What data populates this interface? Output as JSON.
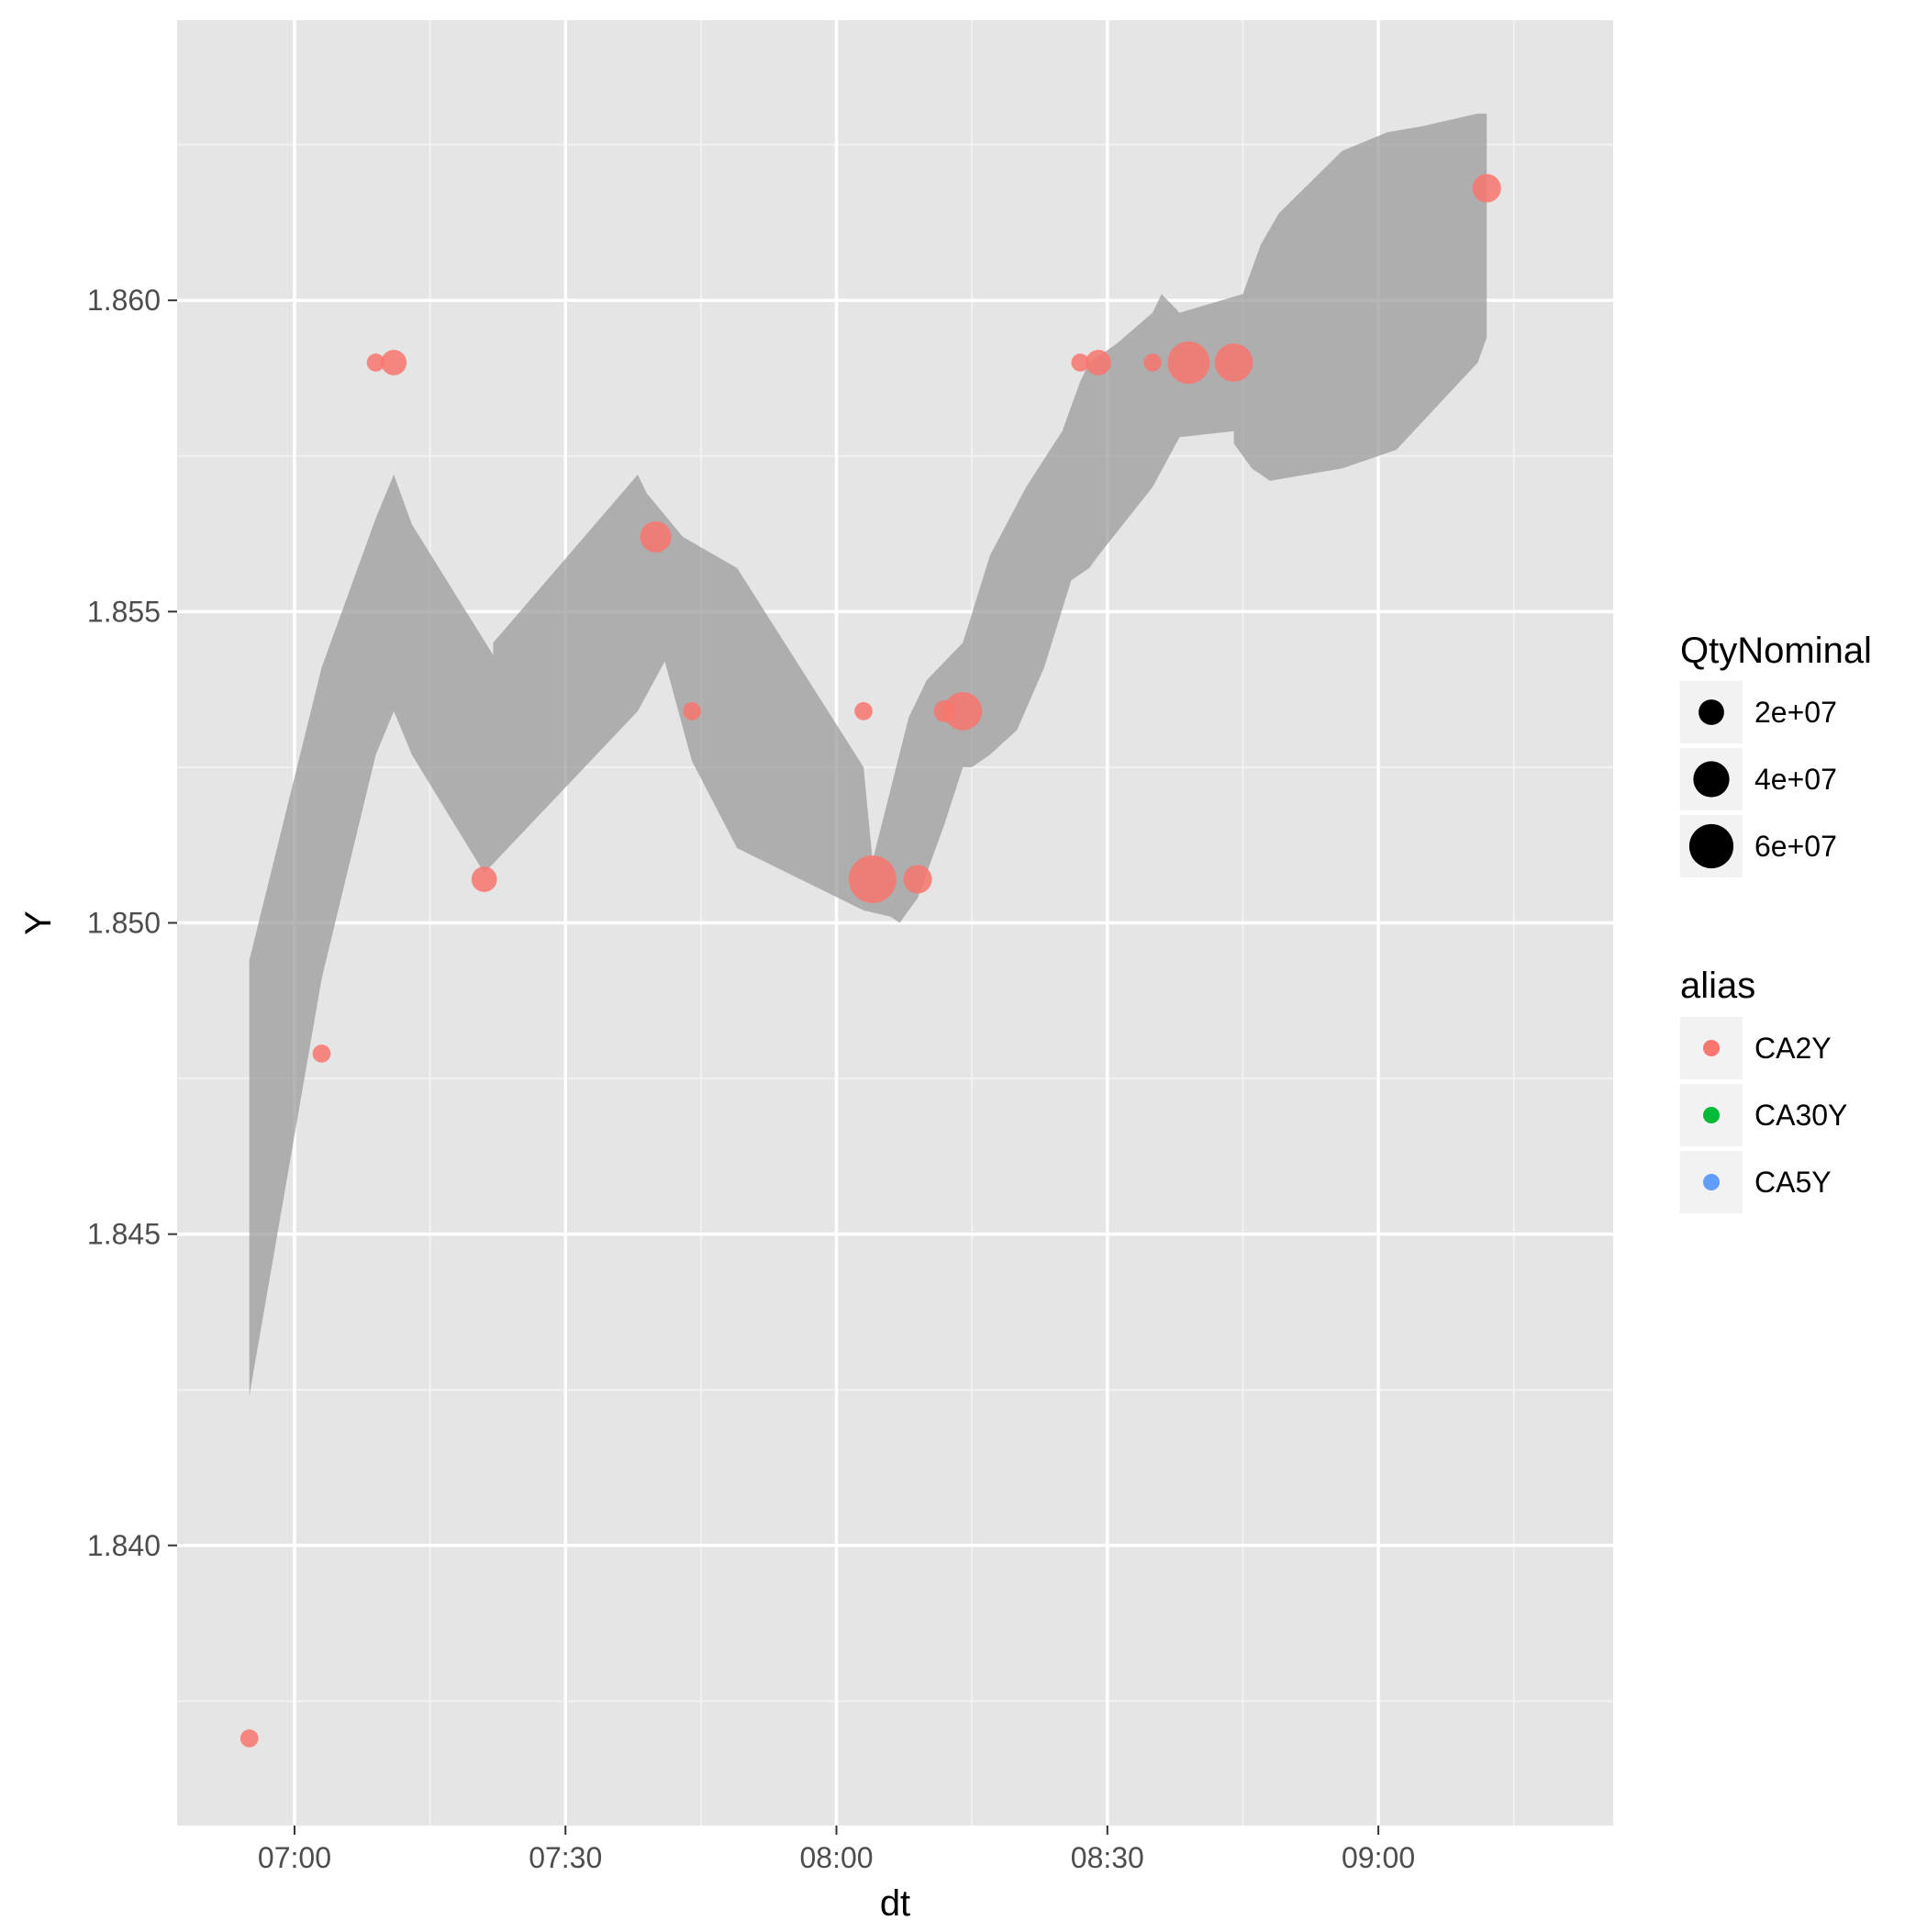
{
  "chart_data": {
    "type": "scatter",
    "xlabel": "dt",
    "ylabel": "Y",
    "grid": true,
    "legend_position": "right",
    "x_axis": {
      "type": "time",
      "range": [
        "06:47",
        "09:26"
      ],
      "ticks": [
        "07:00",
        "07:30",
        "08:00",
        "08:30",
        "09:00"
      ]
    },
    "y_axis": {
      "range": [
        1.8355,
        1.8645
      ],
      "ticks": [
        "1.840",
        "1.845",
        "1.850",
        "1.855",
        "1.860"
      ]
    },
    "band": {
      "color": "#999999",
      "upper": [
        [
          "06:55",
          1.8494
        ],
        [
          "07:03",
          1.8541
        ],
        [
          "07:09",
          1.8565
        ],
        [
          "07:11",
          1.8572
        ],
        [
          "07:13",
          1.8564
        ],
        [
          "07:22",
          1.8543
        ],
        [
          "07:22",
          1.8545
        ],
        [
          "07:38",
          1.8572
        ],
        [
          "07:39",
          1.8569
        ],
        [
          "07:43",
          1.8562
        ],
        [
          "07:49",
          1.8557
        ],
        [
          "08:03",
          1.8525
        ],
        [
          "08:04",
          1.851
        ],
        [
          "08:08",
          1.8533
        ],
        [
          "08:10",
          1.8539
        ],
        [
          "08:14",
          1.8545
        ],
        [
          "08:17",
          1.8559
        ],
        [
          "08:21",
          1.857
        ],
        [
          "08:25",
          1.8579
        ],
        [
          "08:27",
          1.8587
        ],
        [
          "08:28",
          1.859
        ],
        [
          "08:31",
          1.8593
        ],
        [
          "08:35",
          1.8598
        ],
        [
          "08:36",
          1.8601
        ],
        [
          "08:38",
          1.8598
        ],
        [
          "08:45",
          1.8601
        ],
        [
          "08:47",
          1.8609
        ],
        [
          "08:49",
          1.8614
        ],
        [
          "08:56",
          1.8624
        ],
        [
          "09:01",
          1.8627
        ],
        [
          "09:05",
          1.8628
        ],
        [
          "09:11",
          1.863
        ],
        [
          "09:12",
          1.863
        ]
      ],
      "lower": [
        [
          "09:12",
          1.8594
        ],
        [
          "09:11",
          1.859
        ],
        [
          "09:02",
          1.8576
        ],
        [
          "08:56",
          1.8573
        ],
        [
          "08:48",
          1.8571
        ],
        [
          "08:46",
          1.8573
        ],
        [
          "08:44",
          1.8577
        ],
        [
          "08:44",
          1.8579
        ],
        [
          "08:38",
          1.8578
        ],
        [
          "08:35",
          1.857
        ],
        [
          "08:29",
          1.8559
        ],
        [
          "08:28",
          1.8557
        ],
        [
          "08:26",
          1.8555
        ],
        [
          "08:23",
          1.8541
        ],
        [
          "08:20",
          1.8531
        ],
        [
          "08:17",
          1.8527
        ],
        [
          "08:15",
          1.8525
        ],
        [
          "08:14",
          1.8525
        ],
        [
          "08:12",
          1.8516
        ],
        [
          "08:09",
          1.8504
        ],
        [
          "08:07",
          1.85
        ],
        [
          "08:06",
          1.8501
        ],
        [
          "08:03",
          1.8502
        ],
        [
          "07:49",
          1.8512
        ],
        [
          "07:44",
          1.8526
        ],
        [
          "07:41",
          1.8542
        ],
        [
          "07:38",
          1.8534
        ],
        [
          "07:21",
          1.8508
        ],
        [
          "07:13",
          1.8527
        ],
        [
          "07:11",
          1.8534
        ],
        [
          "07:09",
          1.8527
        ],
        [
          "07:03",
          1.8491
        ],
        [
          "06:55",
          1.8424
        ]
      ]
    },
    "series": [
      {
        "name": "CA2Y",
        "color": "#F8766D",
        "points": [
          {
            "x": "06:55",
            "y": 1.8369,
            "qty": 10000000
          },
          {
            "x": "07:03",
            "y": 1.8479,
            "qty": 10000000
          },
          {
            "x": "07:09",
            "y": 1.859,
            "qty": 10000000
          },
          {
            "x": "07:11",
            "y": 1.859,
            "qty": 20000000
          },
          {
            "x": "07:21",
            "y": 1.8507,
            "qty": 20000000
          },
          {
            "x": "07:40",
            "y": 1.8562,
            "qty": 30000000
          },
          {
            "x": "07:44",
            "y": 1.8534,
            "qty": 10000000
          },
          {
            "x": "08:03",
            "y": 1.8534,
            "qty": 10000000
          },
          {
            "x": "08:04",
            "y": 1.8507,
            "qty": 70000000
          },
          {
            "x": "08:09",
            "y": 1.8507,
            "qty": 25000000
          },
          {
            "x": "08:12",
            "y": 1.8534,
            "qty": 15000000
          },
          {
            "x": "08:14",
            "y": 1.8534,
            "qty": 45000000
          },
          {
            "x": "08:27",
            "y": 1.859,
            "qty": 10000000
          },
          {
            "x": "08:29",
            "y": 1.859,
            "qty": 20000000
          },
          {
            "x": "08:35",
            "y": 1.859,
            "qty": 10000000
          },
          {
            "x": "08:39",
            "y": 1.859,
            "qty": 55000000
          },
          {
            "x": "08:44",
            "y": 1.859,
            "qty": 45000000
          },
          {
            "x": "09:12",
            "y": 1.8618,
            "qty": 25000000
          }
        ]
      },
      {
        "name": "CA30Y",
        "color": "#00BA38",
        "points": []
      },
      {
        "name": "CA5Y",
        "color": "#619CFF",
        "points": []
      }
    ],
    "legends": {
      "size": {
        "title": "QtyNominal",
        "entries": [
          {
            "label": "2e+07",
            "qty": 20000000
          },
          {
            "label": "4e+07",
            "qty": 40000000
          },
          {
            "label": "6e+07",
            "qty": 60000000
          }
        ]
      },
      "color": {
        "title": "alias",
        "entries": [
          {
            "label": "CA2Y",
            "color": "#F8766D"
          },
          {
            "label": "CA30Y",
            "color": "#00BA38"
          },
          {
            "label": "CA5Y",
            "color": "#619CFF"
          }
        ]
      }
    }
  }
}
